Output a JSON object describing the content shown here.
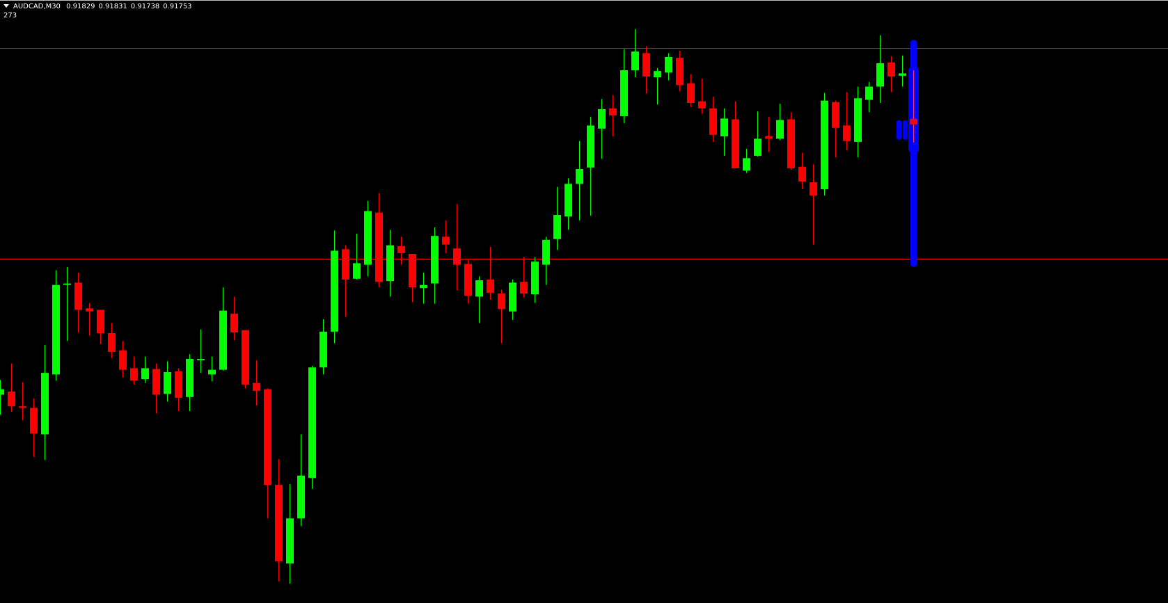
{
  "header": {
    "symbol": "AUDCAD,M30",
    "open": "0.91829",
    "high": "0.91831",
    "low": "0.91738",
    "close": "0.91753",
    "indicator_value": "273"
  },
  "colors": {
    "background": "#000000",
    "bull": "#00ff00",
    "bear": "#ff0000",
    "level_line": "#ff0000",
    "indicator": "#0000ff"
  },
  "chart_data": {
    "type": "candlestick",
    "symbol": "AUDCAD",
    "timeframe": "M30",
    "grid": false,
    "horizontal_levels": [
      0.9186,
      0.91589
    ],
    "ohlc": [
      [
        0.91414,
        0.91433,
        0.91388,
        0.91421
      ],
      [
        0.91418,
        0.91454,
        0.91392,
        0.91399
      ],
      [
        0.91399,
        0.9143,
        0.91381,
        0.91397
      ],
      [
        0.91397,
        0.91409,
        0.91334,
        0.91364
      ],
      [
        0.91363,
        0.91478,
        0.9133,
        0.91442
      ],
      [
        0.9144,
        0.91574,
        0.91432,
        0.91555
      ],
      [
        0.91556,
        0.91578,
        0.91483,
        0.91556
      ],
      [
        0.91558,
        0.91571,
        0.91494,
        0.91523
      ],
      [
        0.91525,
        0.91532,
        0.9149,
        0.91521
      ],
      [
        0.91523,
        0.91523,
        0.91479,
        0.91493
      ],
      [
        0.91493,
        0.91506,
        0.91461,
        0.91469
      ],
      [
        0.91471,
        0.91483,
        0.91436,
        0.91446
      ],
      [
        0.91448,
        0.91463,
        0.91427,
        0.91432
      ],
      [
        0.91434,
        0.91463,
        0.91429,
        0.91448
      ],
      [
        0.91447,
        0.91454,
        0.9139,
        0.91414
      ],
      [
        0.91415,
        0.91457,
        0.91405,
        0.91443
      ],
      [
        0.91444,
        0.91448,
        0.91393,
        0.9141
      ],
      [
        0.91411,
        0.91466,
        0.91393,
        0.9146
      ],
      [
        0.91459,
        0.91498,
        0.91442,
        0.91459
      ],
      [
        0.9144,
        0.91463,
        0.91431,
        0.91446
      ],
      [
        0.91446,
        0.91552,
        0.91445,
        0.91522
      ],
      [
        0.91518,
        0.9154,
        0.91484,
        0.91494
      ],
      [
        0.91497,
        0.91497,
        0.91422,
        0.91427
      ],
      [
        0.91429,
        0.91458,
        0.914,
        0.91419
      ],
      [
        0.91421,
        0.91422,
        0.91255,
        0.91298
      ],
      [
        0.91298,
        0.91331,
        0.91174,
        0.912
      ],
      [
        0.91197,
        0.91299,
        0.91171,
        0.91255
      ],
      [
        0.91255,
        0.91363,
        0.91245,
        0.9131
      ],
      [
        0.91307,
        0.91451,
        0.91293,
        0.91449
      ],
      [
        0.91449,
        0.91511,
        0.9144,
        0.91495
      ],
      [
        0.91495,
        0.91625,
        0.9148,
        0.91599
      ],
      [
        0.91601,
        0.91606,
        0.91514,
        0.91562
      ],
      [
        0.91563,
        0.91621,
        0.91562,
        0.91583
      ],
      [
        0.91581,
        0.91663,
        0.91566,
        0.9165
      ],
      [
        0.91648,
        0.91673,
        0.91552,
        0.91559
      ],
      [
        0.9156,
        0.91626,
        0.9154,
        0.91606
      ],
      [
        0.91605,
        0.91617,
        0.91581,
        0.91596
      ],
      [
        0.91595,
        0.91595,
        0.91533,
        0.91552
      ],
      [
        0.91551,
        0.91571,
        0.91531,
        0.91555
      ],
      [
        0.91557,
        0.91629,
        0.91531,
        0.91618
      ],
      [
        0.91617,
        0.91638,
        0.91596,
        0.91607
      ],
      [
        0.91602,
        0.91659,
        0.91548,
        0.91581
      ],
      [
        0.91582,
        0.91587,
        0.91531,
        0.91541
      ],
      [
        0.9154,
        0.91566,
        0.91506,
        0.91561
      ],
      [
        0.91562,
        0.91604,
        0.91536,
        0.91545
      ],
      [
        0.91544,
        0.91549,
        0.9148,
        0.91524
      ],
      [
        0.91521,
        0.91562,
        0.9151,
        0.91558
      ],
      [
        0.91559,
        0.91591,
        0.91539,
        0.91544
      ],
      [
        0.91543,
        0.91591,
        0.91532,
        0.91585
      ],
      [
        0.91581,
        0.91617,
        0.91555,
        0.91613
      ],
      [
        0.91614,
        0.91681,
        0.916,
        0.91645
      ],
      [
        0.91643,
        0.91692,
        0.91626,
        0.91685
      ],
      [
        0.91685,
        0.9174,
        0.91638,
        0.91704
      ],
      [
        0.91706,
        0.91771,
        0.91644,
        0.9176
      ],
      [
        0.91756,
        0.91794,
        0.91717,
        0.91781
      ],
      [
        0.91782,
        0.91799,
        0.91746,
        0.91773
      ],
      [
        0.91772,
        0.91858,
        0.91763,
        0.91831
      ],
      [
        0.91831,
        0.91884,
        0.91822,
        0.91855
      ],
      [
        0.91853,
        0.91862,
        0.91801,
        0.91823
      ],
      [
        0.91822,
        0.91834,
        0.91787,
        0.9183
      ],
      [
        0.91828,
        0.91853,
        0.91818,
        0.91848
      ],
      [
        0.91847,
        0.91856,
        0.91804,
        0.91812
      ],
      [
        0.91814,
        0.91826,
        0.91784,
        0.91789
      ],
      [
        0.91791,
        0.9182,
        0.91775,
        0.91782
      ],
      [
        0.91782,
        0.91797,
        0.91739,
        0.91748
      ],
      [
        0.91746,
        0.91782,
        0.91721,
        0.91769
      ],
      [
        0.91768,
        0.91791,
        0.91705,
        0.91705
      ],
      [
        0.91702,
        0.9173,
        0.91699,
        0.91718
      ],
      [
        0.91721,
        0.91778,
        0.9172,
        0.91743
      ],
      [
        0.91746,
        0.91771,
        0.91726,
        0.91743
      ],
      [
        0.91743,
        0.91788,
        0.91741,
        0.91767
      ],
      [
        0.91768,
        0.91777,
        0.91703,
        0.91705
      ],
      [
        0.91707,
        0.91725,
        0.91678,
        0.91688
      ],
      [
        0.91687,
        0.9171,
        0.91607,
        0.9167
      ],
      [
        0.91678,
        0.91802,
        0.9167,
        0.91792
      ],
      [
        0.9179,
        0.91792,
        0.91719,
        0.91757
      ],
      [
        0.9176,
        0.91803,
        0.91728,
        0.9174
      ],
      [
        0.91739,
        0.9181,
        0.91719,
        0.91795
      ],
      [
        0.91793,
        0.91816,
        0.91777,
        0.9181
      ],
      [
        0.9181,
        0.91876,
        0.91789,
        0.9184
      ],
      [
        0.91841,
        0.91849,
        0.91803,
        0.91823
      ],
      [
        0.91824,
        0.9185,
        0.9181,
        0.91827
      ],
      [
        0.91829,
        0.91831,
        0.91738,
        0.91753
      ]
    ]
  }
}
